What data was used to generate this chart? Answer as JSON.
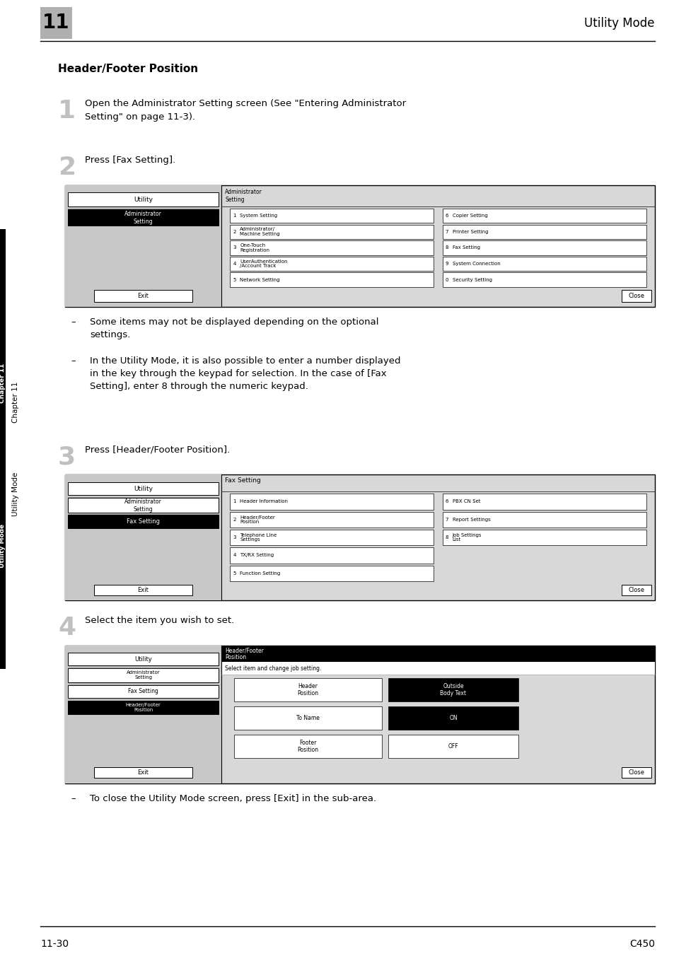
{
  "page_width": 9.54,
  "page_height": 13.52,
  "bg_color": "#ffffff",
  "header_number": "11",
  "header_title": "Utility Mode",
  "footer_left": "11-30",
  "footer_right": "C450",
  "section_title": "Header/Footer Position",
  "step1_number": "1",
  "step1_text": "Open the Administrator Setting screen (See \"Entering Administrator\nSetting\" on page 11-3).",
  "step2_number": "2",
  "step2_text": "Press [Fax Setting].",
  "step3_number": "3",
  "step3_text": "Press [Header/Footer Position].",
  "step4_number": "4",
  "step4_text": "Select the item you wish to set.",
  "note1": "Some items may not be displayed depending on the optional\nsettings.",
  "note2": "In the Utility Mode, it is also possible to enter a number displayed\nin the key through the keypad for selection. In the case of [Fax\nSetting], enter 8 through the numeric keypad.",
  "note3": "To close the Utility Mode screen, press [Exit] in the sub-area.",
  "sidebar_chapter": "Chapter 11",
  "sidebar_mode": "Utility Mode"
}
